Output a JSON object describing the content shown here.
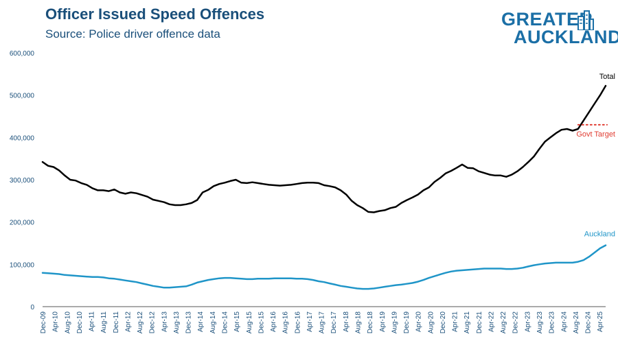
{
  "header": {
    "title": "Officer Issued Speed Offences",
    "subtitle": "Source: Police driver offence data"
  },
  "logo": {
    "line1": "GREATER",
    "line2": "AUCKLAND"
  },
  "colors": {
    "total": "#000000",
    "auckland": "#1f95c8",
    "target": "#e03c31",
    "axis": "#1a4f7a",
    "brand": "#1b6fa6"
  },
  "chart_data": {
    "type": "line",
    "title": "Officer Issued Speed Offences",
    "subtitle": "Source: Police driver offence data",
    "xlabel": "",
    "ylabel": "",
    "ylim": [
      0,
      600000
    ],
    "yticks": [
      0,
      100000,
      200000,
      300000,
      400000,
      500000,
      600000
    ],
    "ytick_labels": [
      "0",
      "100,000",
      "200,000",
      "300,000",
      "400,000",
      "500,000",
      "600,000"
    ],
    "xticks": [
      "Dec-09",
      "Apr-10",
      "Aug-10",
      "Dec-10",
      "Apr-11",
      "Aug-11",
      "Dec-11",
      "Apr-12",
      "Aug-12",
      "Dec-12",
      "Apr-13",
      "Aug-13",
      "Dec-13",
      "Apr-14",
      "Aug-14",
      "Dec-14",
      "Apr-15",
      "Aug-15",
      "Dec-15",
      "Apr-16",
      "Aug-16",
      "Dec-16",
      "Apr-17",
      "Aug-17",
      "Dec-17",
      "Apr-18",
      "Aug-18",
      "Dec-18",
      "Apr-19",
      "Aug-19",
      "Dec-19",
      "Apr-20",
      "Aug-20",
      "Dec-20",
      "Apr-21",
      "Aug-21",
      "Dec-21",
      "Apr-22",
      "Aug-22",
      "Dec-22",
      "Apr-23",
      "Aug-23",
      "Dec-23",
      "Apr-24",
      "Aug-24",
      "Dec-24",
      "Apr-25"
    ],
    "grid": false,
    "series": [
      {
        "name": "Total",
        "label": "Total",
        "values": [
          342000,
          333000,
          330000,
          322000,
          310000,
          300000,
          298000,
          292000,
          288000,
          280000,
          275000,
          275000,
          273000,
          277000,
          270000,
          267000,
          270000,
          268000,
          264000,
          260000,
          253000,
          250000,
          247000,
          242000,
          240000,
          240000,
          242000,
          245000,
          252000,
          270000,
          276000,
          285000,
          290000,
          293000,
          297000,
          300000,
          293000,
          292000,
          294000,
          292000,
          290000,
          288000,
          287000,
          286000,
          287000,
          288000,
          290000,
          292000,
          293000,
          293000,
          292000,
          287000,
          285000,
          282000,
          275000,
          265000,
          250000,
          240000,
          233000,
          224000,
          223000,
          226000,
          228000,
          233000,
          236000,
          245000,
          252000,
          258000,
          265000,
          275000,
          282000,
          295000,
          304000,
          315000,
          321000,
          328000,
          336000,
          328000,
          327000,
          320000,
          316000,
          312000,
          310000,
          310000,
          307000,
          312000,
          320000,
          330000,
          342000,
          355000,
          373000,
          390000,
          400000,
          410000,
          418000,
          420000,
          416000,
          420000,
          440000,
          460000,
          480000,
          500000,
          522000
        ]
      },
      {
        "name": "Auckland",
        "label": "Auckland",
        "values": [
          80000,
          79000,
          78000,
          77000,
          75000,
          74000,
          73000,
          72000,
          71000,
          70000,
          70000,
          69000,
          67000,
          66000,
          64000,
          62000,
          60000,
          58000,
          55000,
          52000,
          49000,
          47000,
          45000,
          45000,
          46000,
          47000,
          48000,
          52000,
          57000,
          60000,
          63000,
          65000,
          67000,
          68000,
          68000,
          67000,
          66000,
          65000,
          65000,
          66000,
          66000,
          66000,
          67000,
          67000,
          67000,
          67000,
          66000,
          66000,
          65000,
          63000,
          60000,
          58000,
          55000,
          52000,
          49000,
          47000,
          45000,
          43000,
          42000,
          42000,
          43000,
          45000,
          47000,
          49000,
          51000,
          52000,
          54000,
          56000,
          59000,
          63000,
          68000,
          72000,
          76000,
          80000,
          83000,
          85000,
          86000,
          87000,
          88000,
          89000,
          90000,
          90000,
          90000,
          90000,
          89000,
          89000,
          90000,
          92000,
          95000,
          98000,
          100000,
          102000,
          103000,
          104000,
          104000,
          104000,
          104000,
          106000,
          110000,
          118000,
          128000,
          138000,
          145000
        ]
      }
    ],
    "reference_lines": [
      {
        "label": "Govt Target",
        "value": 430000,
        "x_start_index": 97,
        "x_end_index": 102
      }
    ]
  }
}
